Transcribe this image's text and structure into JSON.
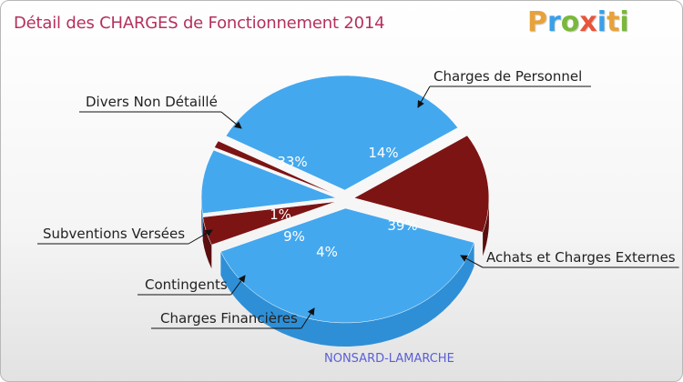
{
  "header": {
    "title": "Détail des CHARGES de Fonctionnement 2014",
    "logo_text": "Proxiti"
  },
  "footer": {
    "commune": "NONSARD-LAMARCHE"
  },
  "colors": {
    "title": "#b5305e",
    "blue_top": "#44a8ee",
    "blue_side": "#2e8fd6",
    "red_top": "#7d1414",
    "red_side": "#5a0e0e",
    "logo_letters": [
      "#e8a23a",
      "#3aa0e8",
      "#7ab83a",
      "#e8553a",
      "#3aa0e8",
      "#e8a23a",
      "#7ab83a"
    ]
  },
  "chart_data": {
    "type": "pie",
    "title": "Détail des CHARGES de Fonctionnement 2014",
    "subtitle": "NONSARD-LAMARCHE",
    "unit": "%",
    "slices": [
      {
        "label": "Charges de Personnel",
        "value": 14,
        "pct_label": "14%",
        "color": "#7d1414"
      },
      {
        "label": "Achats et Charges Externes",
        "value": 39,
        "pct_label": "39%",
        "color": "#44a8ee"
      },
      {
        "label": "Charges Financières",
        "value": 4,
        "pct_label": "4%",
        "color": "#7d1414"
      },
      {
        "label": "Contingents",
        "value": 9,
        "pct_label": "9%",
        "color": "#44a8ee"
      },
      {
        "label": "Subventions Versées",
        "value": 1,
        "pct_label": "1%",
        "color": "#7d1414"
      },
      {
        "label": "Divers Non Détaillé",
        "value": 33,
        "pct_label": "33%",
        "color": "#44a8ee"
      }
    ]
  }
}
